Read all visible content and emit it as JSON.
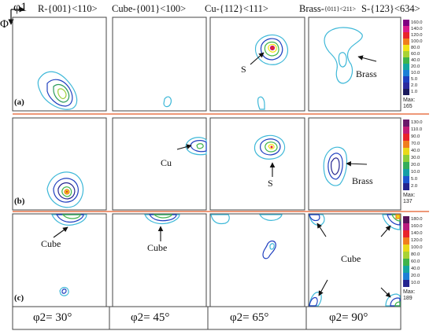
{
  "axes": {
    "phi1": "φ1",
    "Phi": "Φ"
  },
  "headers": [
    {
      "text": "R-{001}<110>"
    },
    {
      "text": "Cube-{001}<100>"
    },
    {
      "text": "Cu-{112}<111>"
    },
    {
      "text": "Brass-"
    },
    {
      "text": "{011}<211>"
    },
    {
      "text": "S-{123}<634>"
    }
  ],
  "rows": [
    {
      "tag": "(a)",
      "colorbar": [
        "160.0",
        "140.0",
        "120.0",
        "100.0",
        "80.0",
        "60.0",
        "40.0",
        "20.0",
        "10.0",
        "5.0",
        "2.0",
        "1.0"
      ],
      "max_label": "Max:",
      "max_value": "165"
    },
    {
      "tag": "(b)",
      "colorbar": [
        "130.0",
        "110.0",
        "90.0",
        "70.0",
        "40.0",
        "30.0",
        "20.0",
        "10.0",
        "5.0",
        "2.0"
      ],
      "max_label": "Max:",
      "max_value": "137"
    },
    {
      "tag": "(c)",
      "colorbar": [
        "180.0",
        "160.0",
        "140.0",
        "120.0",
        "100.0",
        "80.0",
        "60.0",
        "40.0",
        "20.0",
        "10.0"
      ],
      "max_label": "Max:",
      "max_value": "189"
    }
  ],
  "annotations": {
    "a_S": "S",
    "a_Brass": "Brass",
    "b_Cu": "Cu",
    "b_S": "S",
    "b_Brass": "Brass",
    "c_Cube1": "Cube",
    "c_Cube2": "Cube",
    "c_Cube4": "Cube"
  },
  "bottom_labels": [
    "φ2= 30°",
    "φ2= 45°",
    "φ2= 65°",
    "φ2= 90°"
  ],
  "colors": {
    "separator": "#e8774b",
    "frame": "#444444"
  }
}
